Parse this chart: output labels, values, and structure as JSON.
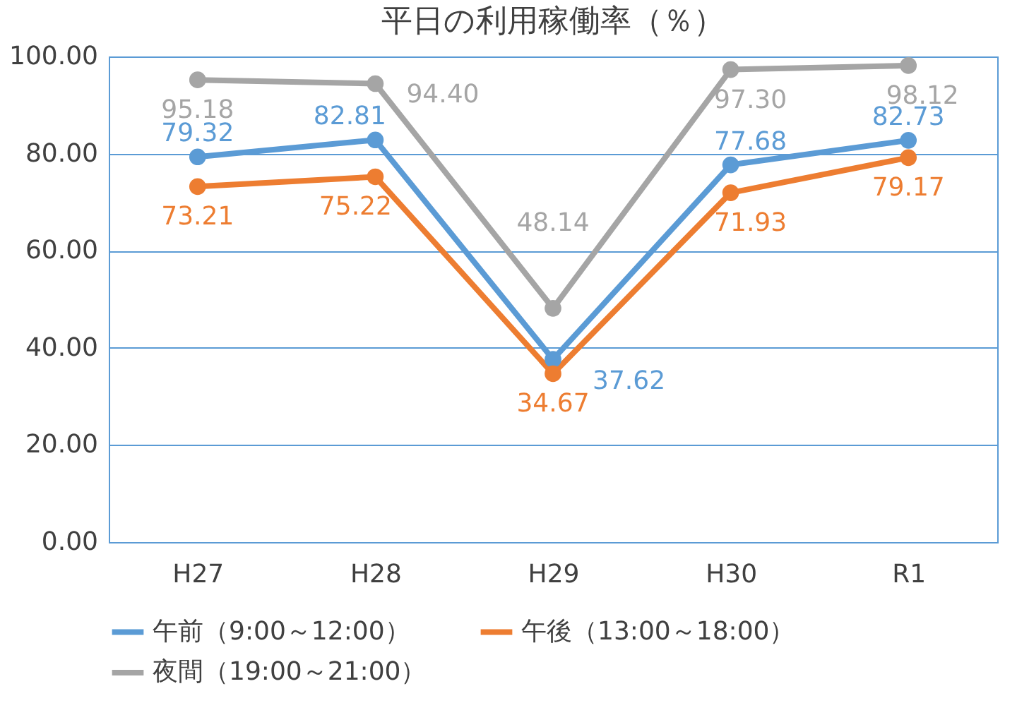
{
  "chart_data": {
    "type": "line",
    "title": "平日の利用稼働率（％）",
    "categories": [
      "H27",
      "H28",
      "H29",
      "H30",
      "R1"
    ],
    "series": [
      {
        "name": "午前（9:00～12:00）",
        "color": "#5b9bd5",
        "values": [
          79.32,
          82.81,
          37.62,
          77.68,
          82.73
        ],
        "value_labels": [
          "79.32",
          "82.81",
          "37.62",
          "77.68",
          "82.73"
        ]
      },
      {
        "name": "午後（13:00～18:00）",
        "color": "#ed7d31",
        "values": [
          73.21,
          75.22,
          34.67,
          71.93,
          79.17
        ],
        "value_labels": [
          "73.21",
          "75.22",
          "34.67",
          "71.93",
          "79.17"
        ]
      },
      {
        "name": "夜間（19:00～21:00）",
        "color": "#a5a5a5",
        "values": [
          95.18,
          94.4,
          48.14,
          97.3,
          98.12
        ],
        "value_labels": [
          "95.18",
          "94.40",
          "48.14",
          "97.30",
          "98.12"
        ]
      }
    ],
    "ylim": [
      0,
      100
    ],
    "yticks": [
      {
        "value": 0,
        "label": "0.00"
      },
      {
        "value": 20,
        "label": "20.00"
      },
      {
        "value": 40,
        "label": "40.00"
      },
      {
        "value": 60,
        "label": "60.00"
      },
      {
        "value": 80,
        "label": "80.00"
      },
      {
        "value": 100,
        "label": "100.00"
      }
    ],
    "grid": "y",
    "legend": "bottom",
    "marker": "circle",
    "line_style": "solid"
  }
}
